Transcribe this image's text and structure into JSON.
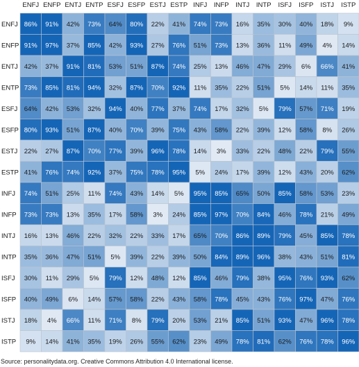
{
  "chart_data": {
    "type": "heatmap",
    "title": "",
    "xlabel": "",
    "ylabel": "",
    "categories": [
      "ENFJ",
      "ENFP",
      "ENTJ",
      "ENTP",
      "ESFJ",
      "ESFP",
      "ESTJ",
      "ESTP",
      "INFJ",
      "INFP",
      "INTJ",
      "INTP",
      "ISFJ",
      "ISFP",
      "ISTJ",
      "ISTP"
    ],
    "value_suffix": "%",
    "values": [
      [
        86,
        91,
        42,
        73,
        64,
        80,
        22,
        41,
        74,
        73,
        16,
        35,
        30,
        40,
        18,
        9
      ],
      [
        91,
        97,
        37,
        85,
        42,
        93,
        27,
        76,
        51,
        73,
        13,
        36,
        11,
        49,
        4,
        14
      ],
      [
        42,
        37,
        91,
        81,
        53,
        51,
        87,
        74,
        25,
        13,
        46,
        47,
        29,
        6,
        66,
        41
      ],
      [
        73,
        85,
        81,
        94,
        32,
        87,
        70,
        92,
        11,
        35,
        22,
        51,
        5,
        14,
        11,
        35
      ],
      [
        64,
        42,
        53,
        32,
        94,
        40,
        77,
        37,
        74,
        17,
        32,
        5,
        79,
        57,
        71,
        19
      ],
      [
        80,
        93,
        51,
        87,
        40,
        70,
        39,
        75,
        43,
        58,
        22,
        39,
        12,
        58,
        8,
        26
      ],
      [
        22,
        27,
        87,
        70,
        77,
        39,
        96,
        78,
        14,
        3,
        33,
        22,
        48,
        22,
        79,
        55
      ],
      [
        41,
        76,
        74,
        92,
        37,
        75,
        78,
        95,
        5,
        24,
        17,
        39,
        12,
        43,
        20,
        62
      ],
      [
        74,
        51,
        25,
        11,
        74,
        43,
        14,
        5,
        95,
        85,
        65,
        50,
        85,
        58,
        53,
        23
      ],
      [
        73,
        73,
        13,
        35,
        17,
        58,
        3,
        24,
        85,
        97,
        70,
        84,
        46,
        78,
        21,
        49
      ],
      [
        16,
        13,
        46,
        22,
        32,
        22,
        33,
        17,
        65,
        70,
        86,
        89,
        79,
        45,
        85,
        78
      ],
      [
        35,
        36,
        47,
        51,
        5,
        39,
        22,
        39,
        50,
        84,
        89,
        96,
        38,
        43,
        51,
        81
      ],
      [
        30,
        11,
        29,
        5,
        79,
        12,
        48,
        12,
        85,
        46,
        79,
        38,
        95,
        76,
        93,
        62
      ],
      [
        40,
        49,
        6,
        14,
        57,
        58,
        22,
        43,
        58,
        78,
        45,
        43,
        76,
        97,
        47,
        76
      ],
      [
        18,
        4,
        66,
        11,
        71,
        8,
        79,
        20,
        53,
        21,
        85,
        51,
        93,
        47,
        96,
        78
      ],
      [
        9,
        14,
        41,
        35,
        19,
        26,
        55,
        62,
        23,
        49,
        78,
        81,
        62,
        76,
        78,
        96
      ]
    ],
    "colors": {
      "low": "#e8eef6",
      "mid": "#7aa6d3",
      "high": "#1565b7",
      "dark_text": "#1a1a1a",
      "light_text": "#ffffff",
      "grid": "#b9c4d0"
    },
    "grid": true,
    "legend": "none"
  },
  "source_note": "Source: personalitydata.org. Creative Commons Attribution 4.0 International license."
}
